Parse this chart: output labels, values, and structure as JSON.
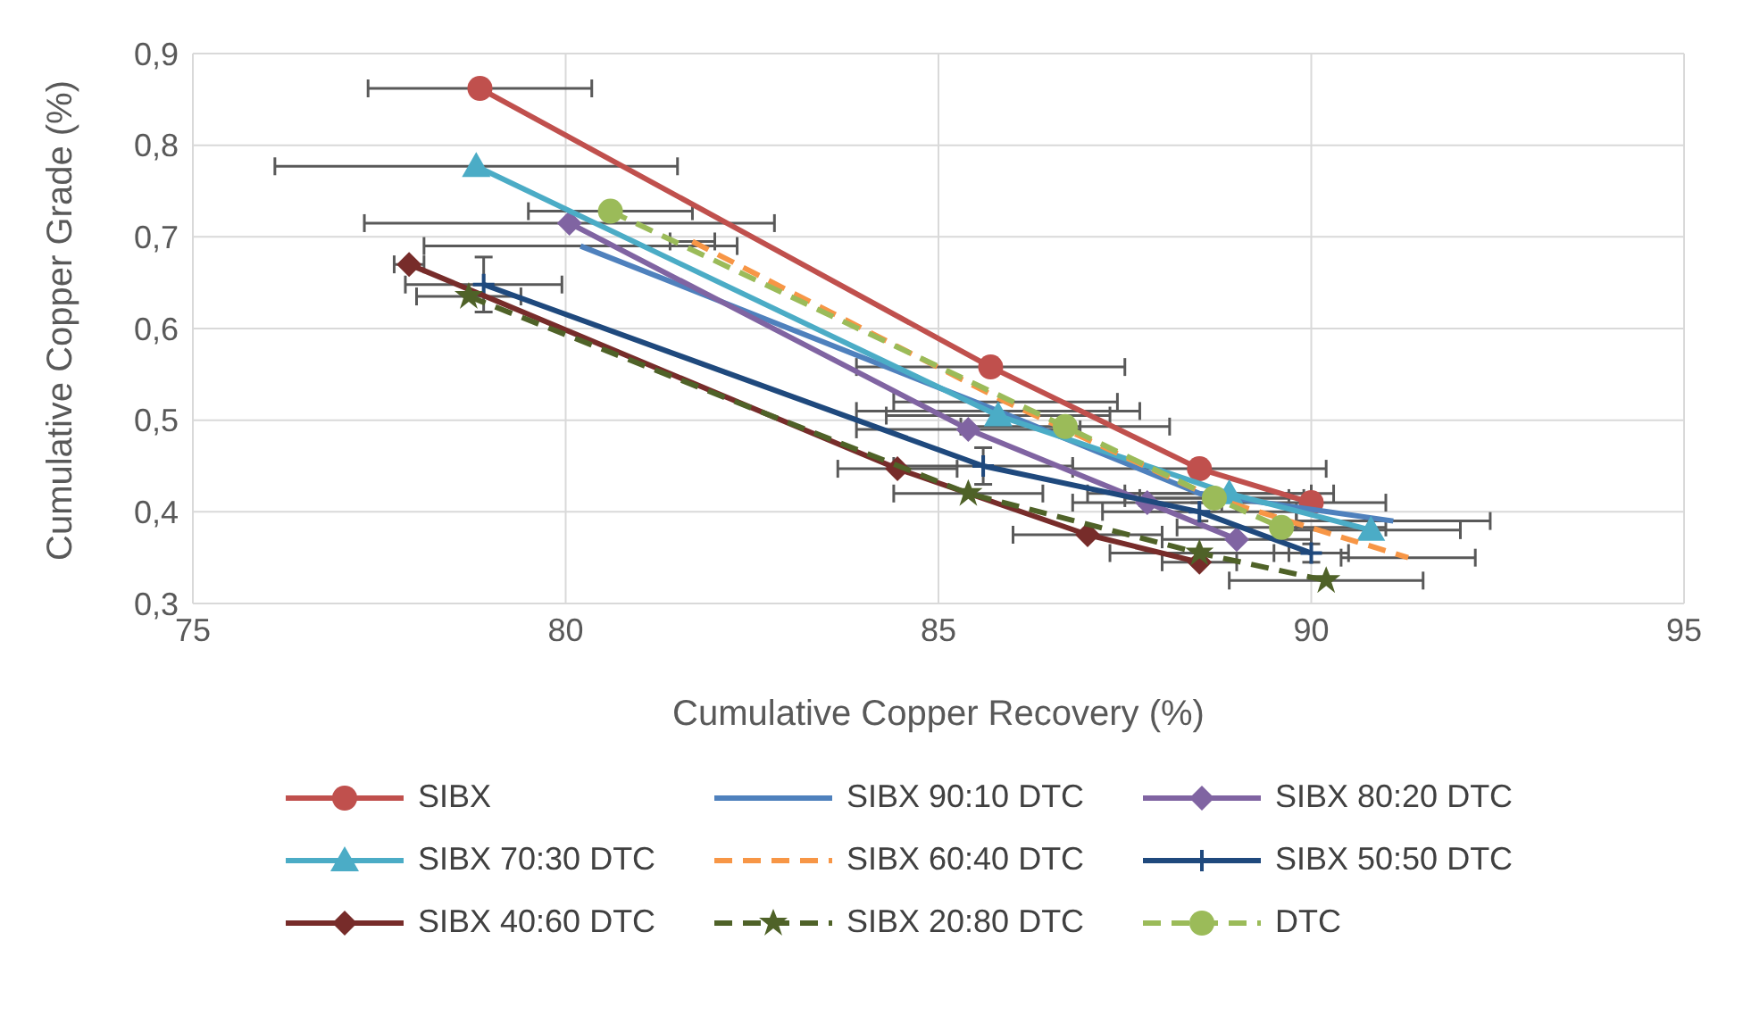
{
  "chart_data": {
    "type": "line",
    "xlabel": "Cumulative Copper Recovery (%)",
    "ylabel": "Cumulative Copper Grade (%)",
    "xlim": [
      75,
      95
    ],
    "xticks": [
      75,
      80,
      85,
      90,
      95
    ],
    "ylim": [
      0.3,
      0.9
    ],
    "yticks": [
      {
        "value": 0.3,
        "label": "0,3"
      },
      {
        "value": 0.4,
        "label": "0,4"
      },
      {
        "value": 0.5,
        "label": "0,5"
      },
      {
        "value": 0.6,
        "label": "0,6"
      },
      {
        "value": 0.7,
        "label": "0,7"
      },
      {
        "value": 0.8,
        "label": "0,8"
      },
      {
        "value": 0.9,
        "label": "0,9"
      }
    ],
    "grid": true,
    "legend": "bottom",
    "series": [
      {
        "name": "SIBX",
        "color": "#c0504d",
        "marker": "circle",
        "line_style": "solid",
        "x": [
          78.85,
          85.7,
          88.5,
          90.0
        ],
        "values": [
          0.862,
          0.558,
          0.447,
          0.41
        ],
        "xerrors": [
          1.5,
          1.8,
          1.7,
          1.0
        ]
      },
      {
        "name": "SIBX 90:10 DTC",
        "color": "#4f81bd",
        "marker": "none",
        "line_style": "solid",
        "x": [
          80.2,
          85.8,
          88.5,
          91.1
        ],
        "values": [
          0.69,
          0.51,
          0.42,
          0.39
        ],
        "xerrors": [
          2.1,
          1.9,
          1.5,
          1.3
        ]
      },
      {
        "name": "SIBX 80:20 DTC",
        "color": "#8064a2",
        "marker": "diamond",
        "line_style": "solid",
        "x": [
          80.05,
          85.4,
          87.8,
          89.0
        ],
        "values": [
          0.715,
          0.49,
          0.41,
          0.37
        ],
        "xerrors": [
          2.75,
          1.5,
          1.0,
          1.0
        ]
      },
      {
        "name": "SIBX 70:30 DTC",
        "color": "#4bacc6",
        "marker": "triangle",
        "line_style": "solid",
        "x": [
          78.8,
          85.8,
          88.9,
          90.8
        ],
        "values": [
          0.777,
          0.505,
          0.42,
          0.38
        ],
        "xerrors": [
          2.7,
          1.5,
          1.4,
          1.2
        ]
      },
      {
        "name": "SIBX 60:40 DTC",
        "color": "#f79646",
        "marker": "none",
        "line_style": "dashed",
        "x": [
          81.7,
          85.9,
          88.7,
          91.3
        ],
        "values": [
          0.695,
          0.52,
          0.415,
          0.35
        ],
        "xerrors": [
          0.3,
          1.5,
          1.0,
          0.9
        ]
      },
      {
        "name": "SIBX 50:50 DTC",
        "color": "#1f497d",
        "marker": "cross",
        "line_style": "solid",
        "x": [
          78.9,
          85.6,
          88.5,
          90.0
        ],
        "values": [
          0.648,
          0.45,
          0.4,
          0.355
        ],
        "xerrors": [
          1.05,
          1.2,
          1.3,
          0.5
        ],
        "errors": [
          0.03,
          0.02,
          0.01,
          0.01
        ]
      },
      {
        "name": "SIBX 40:60 DTC",
        "color": "#772c2a",
        "marker": "diamond",
        "line_style": "solid",
        "x": [
          77.9,
          84.45,
          87.0,
          88.5
        ],
        "values": [
          0.67,
          0.447,
          0.375,
          0.345
        ],
        "xerrors": [
          0.2,
          0.8,
          1.0,
          0.5
        ]
      },
      {
        "name": "SIBX 20:80 DTC",
        "color": "#4f6228",
        "marker": "star",
        "line_style": "dashed",
        "x": [
          78.7,
          85.4,
          88.5,
          90.2
        ],
        "values": [
          0.635,
          0.42,
          0.355,
          0.325
        ],
        "xerrors": [
          0.7,
          1.0,
          1.2,
          1.3
        ]
      },
      {
        "name": "DTC",
        "color": "#9bbb59",
        "marker": "circle",
        "line_style": "dashed",
        "x": [
          80.6,
          86.7,
          88.7,
          89.6
        ],
        "values": [
          0.728,
          0.493,
          0.415,
          0.383
        ],
        "xerrors": [
          1.1,
          1.4,
          1.2,
          1.4
        ]
      }
    ]
  }
}
